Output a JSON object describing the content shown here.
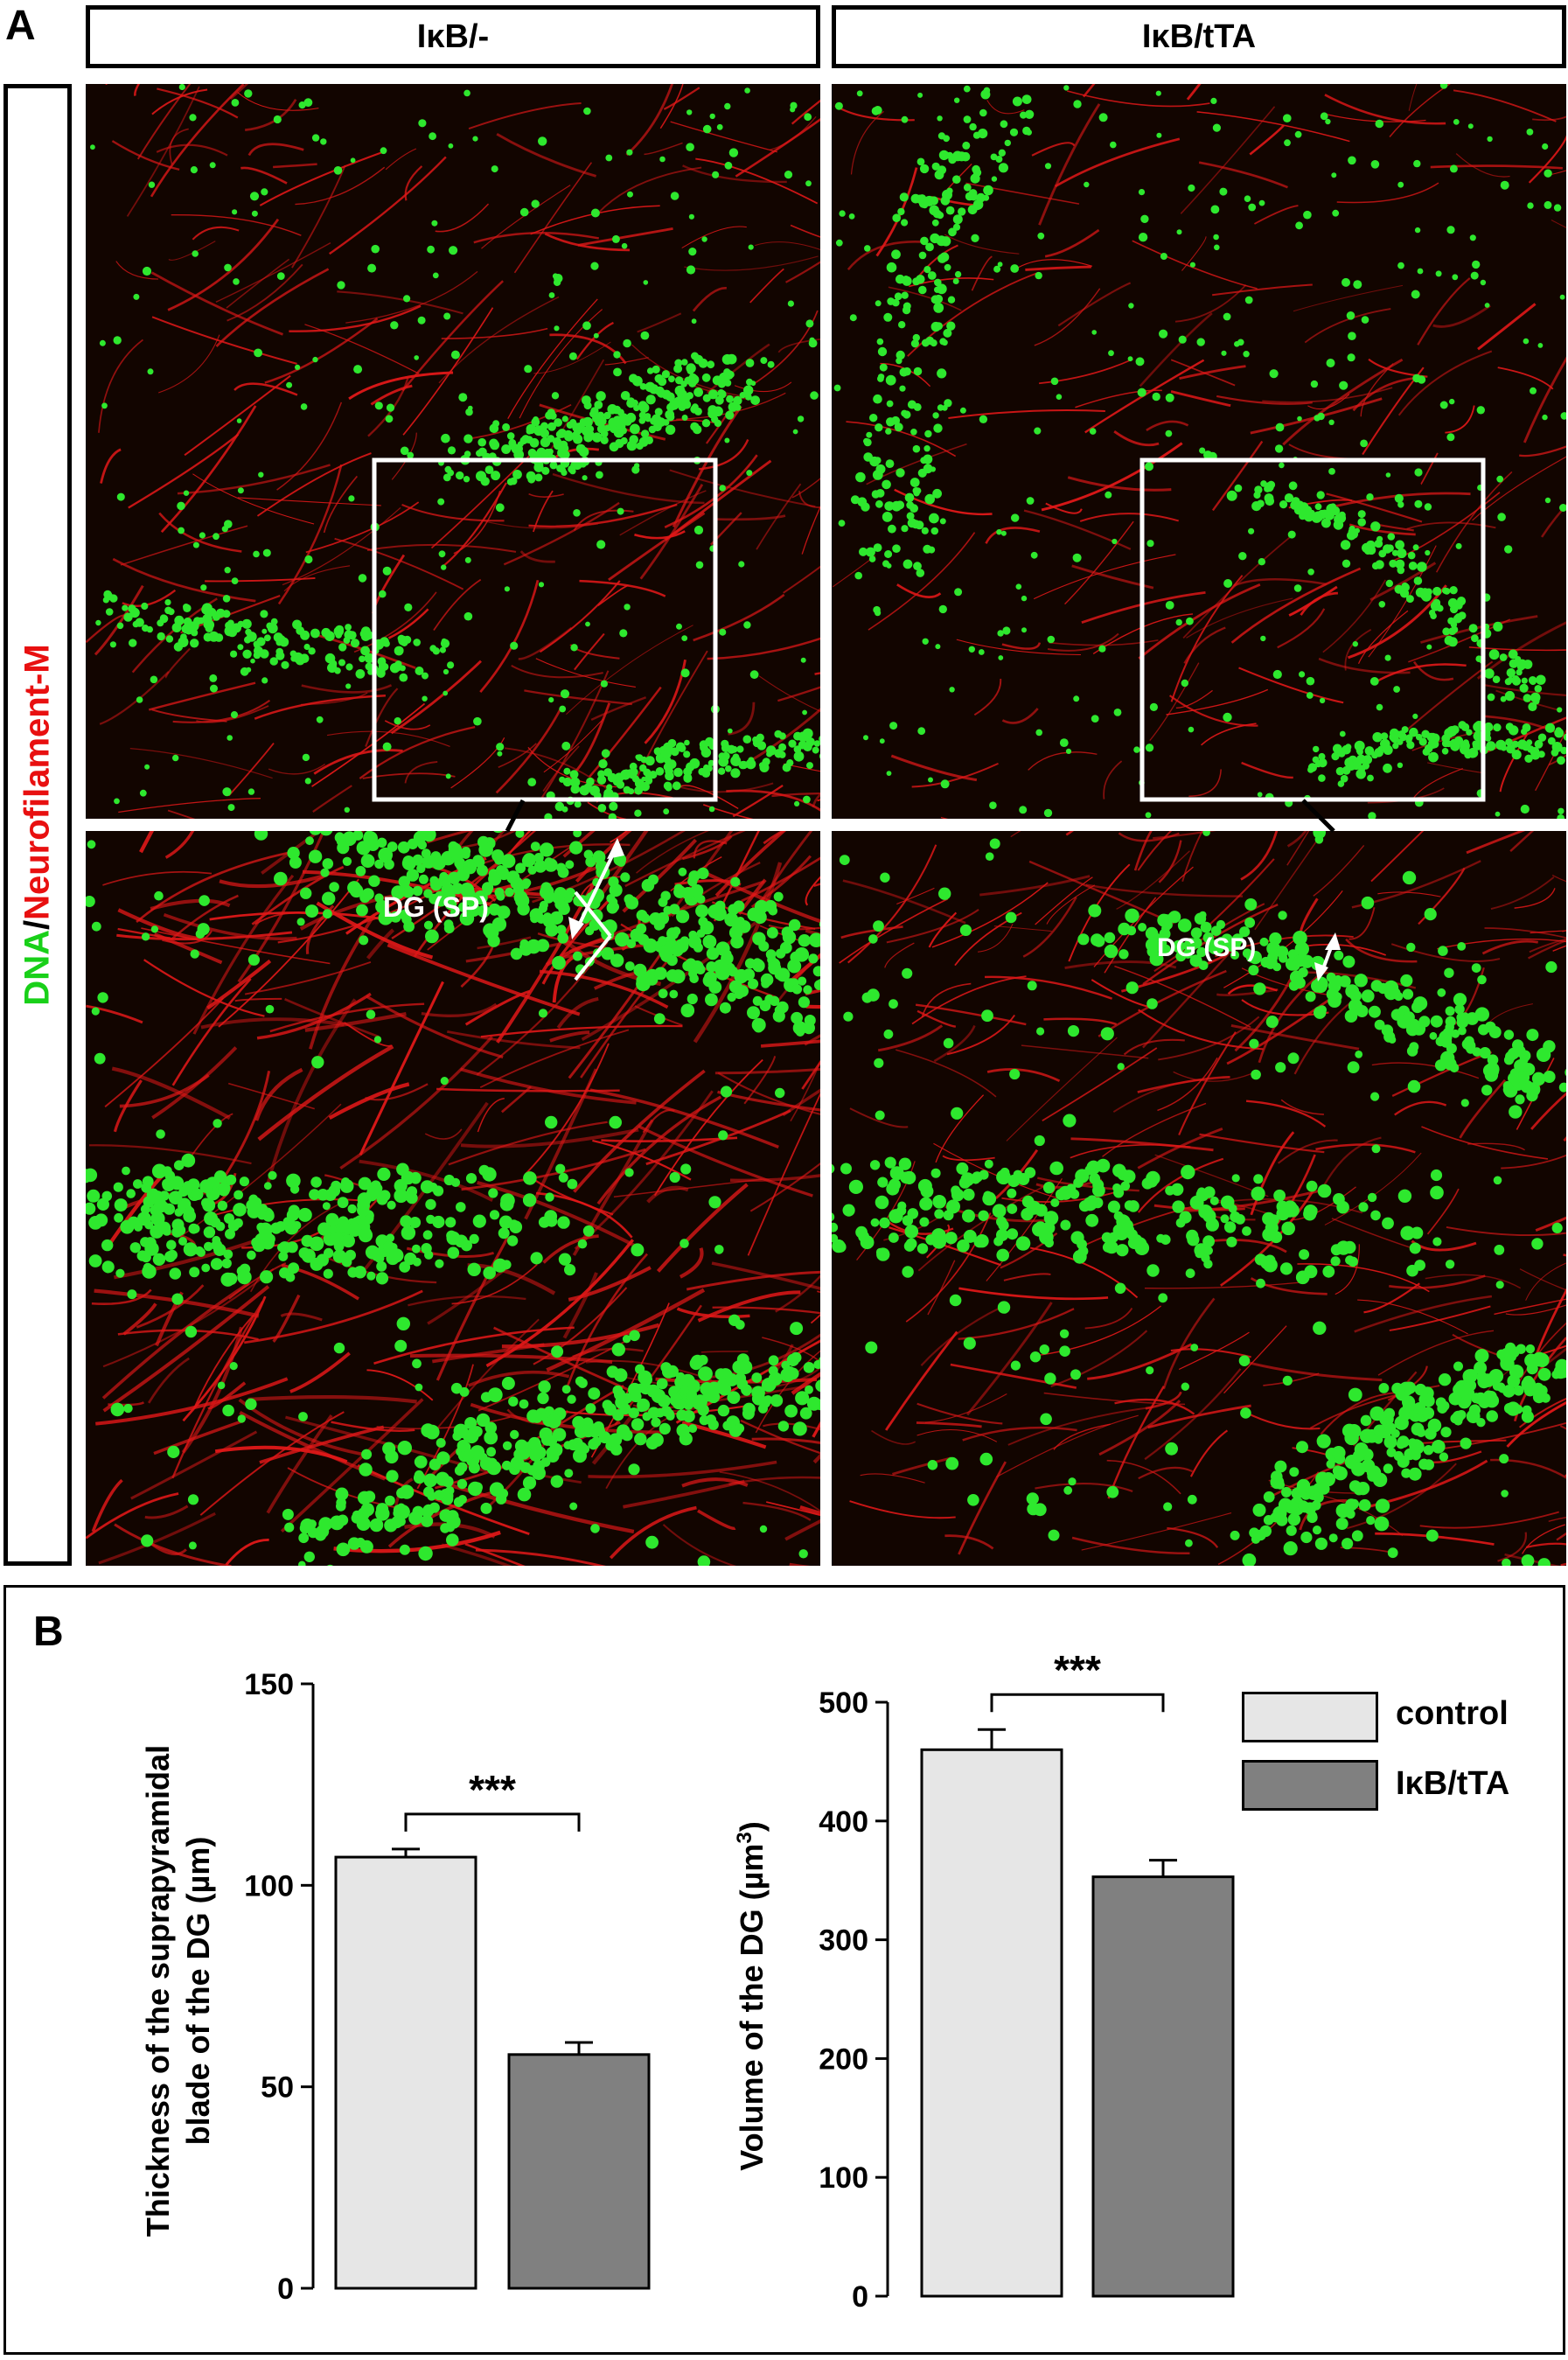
{
  "panel_a": {
    "letter": "A",
    "columns": [
      "IκB/-",
      "IκB/tTA"
    ],
    "stain_label": {
      "dna": "DNA",
      "separator": "/",
      "neurofilament": "Neurofilament-M"
    },
    "annotation": "DG (SP)",
    "colors": {
      "nuclei": "#2ee82e",
      "fibers": "#e01818",
      "background": "#120500",
      "inset_box": "#ffffff"
    },
    "images": [
      {
        "column": "IκB/-",
        "row": "overview",
        "content": "confocal-micrograph"
      },
      {
        "column": "IκB/tTA",
        "row": "overview",
        "content": "confocal-micrograph"
      },
      {
        "column": "IκB/-",
        "row": "zoom",
        "content": "confocal-micrograph"
      },
      {
        "column": "IκB/tTA",
        "row": "zoom",
        "content": "confocal-micrograph"
      }
    ]
  },
  "panel_b": {
    "letter": "B",
    "legend": [
      {
        "label": "control",
        "color": "#e6e6e6"
      },
      {
        "label": "IκB/tTA",
        "color": "#808080"
      }
    ]
  },
  "chart_data": [
    {
      "type": "bar",
      "categories": [
        "control",
        "IκB/tTA"
      ],
      "values": [
        107,
        58
      ],
      "errors": [
        2,
        3
      ],
      "colors": [
        "#e6e6e6",
        "#808080"
      ],
      "ylabel": "Thickness of the suprapyramidal blade of the DG (µm)",
      "ylabel_lines": [
        "Thickness of the suprapyramidal",
        "blade of the DG (µm)"
      ],
      "ylim": [
        0,
        150
      ],
      "yticks": [
        0,
        50,
        100,
        150
      ],
      "significance": "***"
    },
    {
      "type": "bar",
      "categories": [
        "control",
        "IκB/tTA"
      ],
      "values": [
        460,
        353
      ],
      "errors": [
        17,
        14
      ],
      "colors": [
        "#e6e6e6",
        "#808080"
      ],
      "ylabel": "Volume of the DG (µm3)",
      "ylabel_main": "Volume of the DG (µm",
      "ylabel_sup": "3",
      "ylabel_close": ")",
      "ylim": [
        0,
        500
      ],
      "yticks": [
        0,
        100,
        200,
        300,
        400,
        500
      ],
      "significance": "***"
    }
  ]
}
